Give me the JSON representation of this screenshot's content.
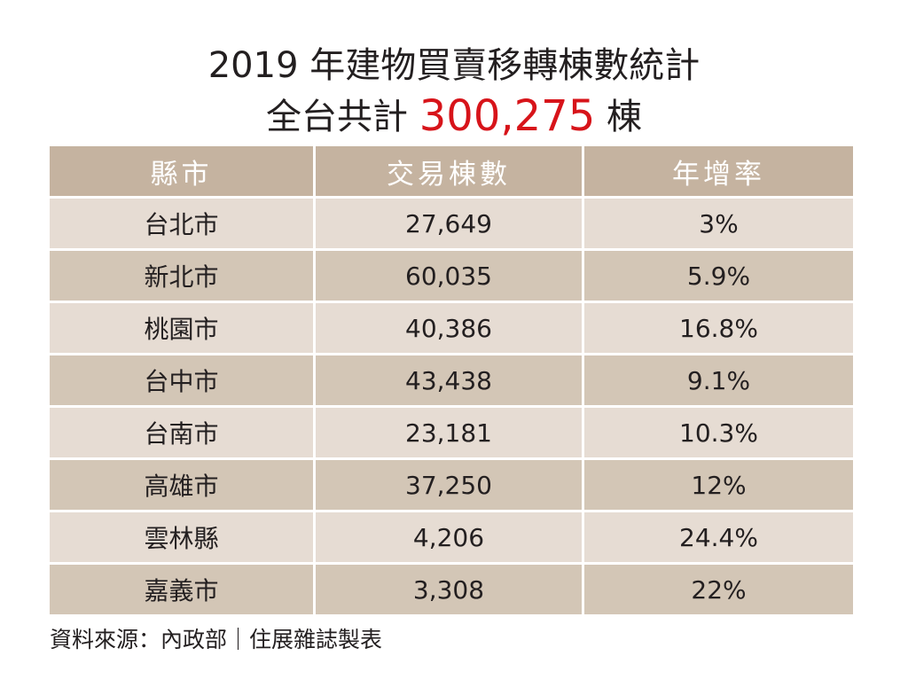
{
  "title": {
    "line1": "2019 年建物買賣移轉棟數統計",
    "line2_prefix": "全台共計 ",
    "line2_value": "300,275",
    "line2_suffix": " 棟",
    "value_color": "#d7141a"
  },
  "table": {
    "headers": [
      "縣市",
      "交易棟數",
      "年增率"
    ],
    "rows": [
      [
        "台北市",
        "27,649",
        "3%"
      ],
      [
        "新北市",
        "60,035",
        "5.9%"
      ],
      [
        "桃園市",
        "40,386",
        "16.8%"
      ],
      [
        "台中市",
        "43,438",
        "9.1%"
      ],
      [
        "台南市",
        "23,181",
        "10.3%"
      ],
      [
        "高雄市",
        "37,250",
        "12%"
      ],
      [
        "雲林縣",
        "4,206",
        "24.4%"
      ],
      [
        "嘉義市",
        "3,308",
        "22%"
      ]
    ],
    "colors": {
      "header_bg": "#c5b3a0",
      "row_light": "#e6dcd3",
      "row_dark": "#d3c6b6"
    }
  },
  "source": "資料來源：內政部｜住展雜誌製表"
}
